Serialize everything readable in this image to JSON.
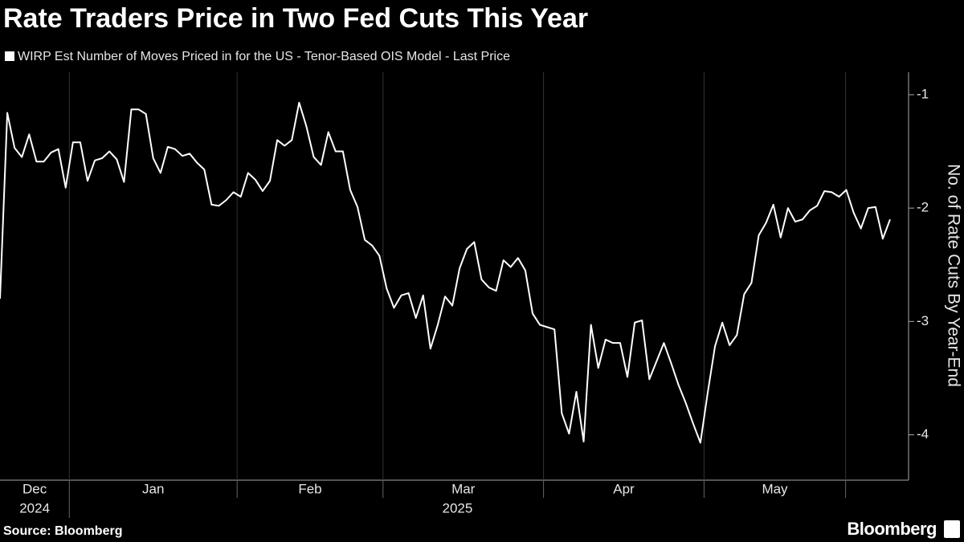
{
  "chart_data": {
    "type": "line",
    "title": "Rate Traders Price in Two Fed Cuts This Year",
    "source": "Source: Bloomberg",
    "logo": "Bloomberg",
    "y_label": "No. of Rate Cuts By Year-End",
    "year_labels": [
      "2024",
      "2025"
    ],
    "categories": [
      "Dec",
      null,
      null,
      null,
      null,
      null,
      null,
      null,
      null,
      null,
      "Jan",
      null,
      null,
      null,
      null,
      null,
      null,
      null,
      null,
      null,
      null,
      null,
      null,
      null,
      null,
      null,
      null,
      null,
      null,
      null,
      null,
      null,
      null,
      "Feb",
      null,
      null,
      null,
      null,
      null,
      null,
      null,
      null,
      null,
      null,
      null,
      null,
      null,
      null,
      null,
      null,
      null,
      null,
      null,
      "Mar",
      null,
      null,
      null,
      null,
      null,
      null,
      null,
      null,
      null,
      null,
      null,
      null,
      null,
      null,
      null,
      null,
      null,
      null,
      null,
      null,
      null,
      "Apr",
      null,
      null,
      null,
      null,
      null,
      null,
      null,
      null,
      null,
      null,
      null,
      null,
      null,
      null,
      null,
      null,
      null,
      null,
      null,
      null,
      null,
      "May",
      null,
      null,
      null,
      null,
      null,
      null,
      null,
      null,
      null,
      null,
      null,
      null,
      null,
      null,
      null,
      null,
      null,
      null,
      null,
      null,
      null,
      null,
      null,
      null,
      null
    ],
    "series": [
      {
        "name": "WIRP Est Number of Moves Priced in for the US - Tenor-Based OIS Model - Last Price",
        "color": "#ffffff",
        "values": [
          -2.8,
          -1.16,
          -1.47,
          -1.55,
          -1.35,
          -1.59,
          -1.59,
          -1.51,
          -1.48,
          -1.82,
          -1.42,
          -1.42,
          -1.76,
          -1.58,
          -1.56,
          -1.5,
          -1.57,
          -1.77,
          -1.13,
          -1.13,
          -1.17,
          -1.56,
          -1.69,
          -1.46,
          -1.48,
          -1.54,
          -1.52,
          -1.6,
          -1.66,
          -1.97,
          -1.98,
          -1.93,
          -1.86,
          -1.9,
          -1.69,
          -1.75,
          -1.85,
          -1.76,
          -1.4,
          -1.45,
          -1.4,
          -1.07,
          -1.28,
          -1.55,
          -1.62,
          -1.33,
          -1.5,
          -1.5,
          -1.84,
          -1.99,
          -2.28,
          -2.33,
          -2.42,
          -2.71,
          -2.88,
          -2.77,
          -2.75,
          -2.97,
          -2.77,
          -3.24,
          -3.03,
          -2.78,
          -2.86,
          -2.53,
          -2.36,
          -2.3,
          -2.63,
          -2.7,
          -2.73,
          -2.46,
          -2.52,
          -2.44,
          -2.55,
          -2.93,
          -3.03,
          -3.05,
          -3.07,
          -3.81,
          -3.99,
          -3.62,
          -4.06,
          -3.03,
          -3.41,
          -3.16,
          -3.19,
          -3.19,
          -3.49,
          -3.01,
          -2.99,
          -3.51,
          -3.35,
          -3.19,
          -3.37,
          -3.56,
          -3.72,
          -3.9,
          -4.07,
          -3.63,
          -3.22,
          -3.01,
          -3.21,
          -3.12,
          -2.76,
          -2.66,
          -2.24,
          -2.13,
          -1.97,
          -2.26,
          -2.0,
          -2.12,
          -2.1,
          -2.02,
          -1.98,
          -1.85,
          -1.86,
          -1.9,
          -1.84,
          -2.04,
          -2.18,
          -2.0,
          -1.99,
          -2.27,
          -2.1
        ]
      }
    ],
    "ylim": [
      -4.4,
      -0.8
    ],
    "yticks": [
      -1,
      -2,
      -3,
      -4
    ],
    "x_grid": true,
    "legend": "top-left"
  }
}
